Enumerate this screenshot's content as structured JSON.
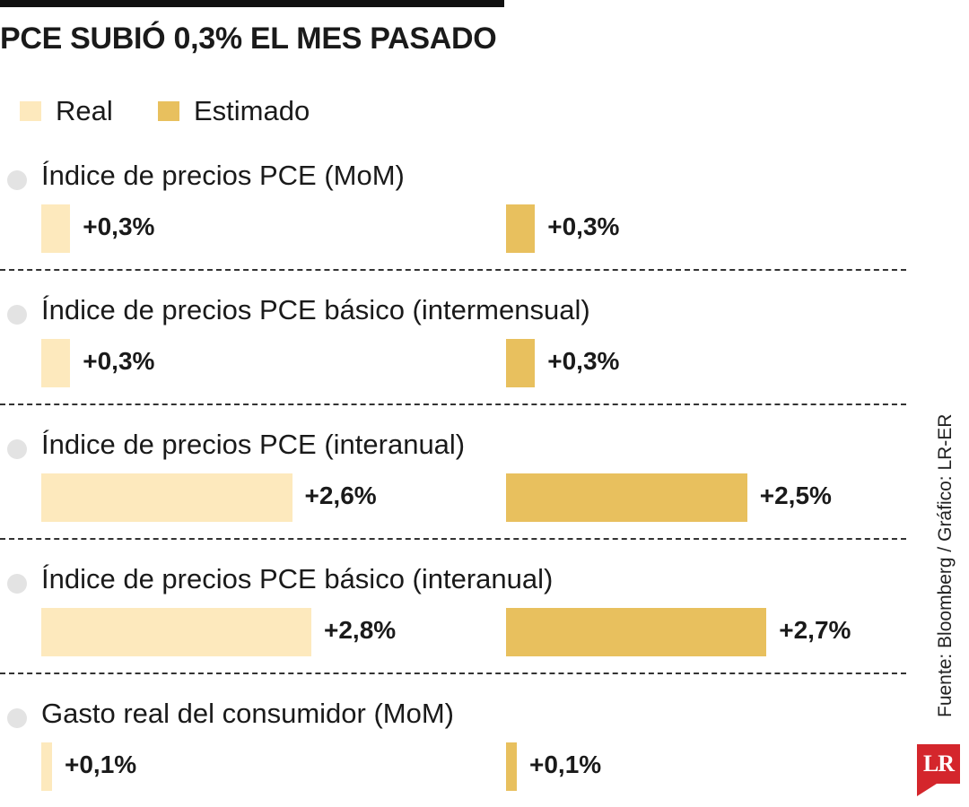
{
  "title": "PCE SUBIÓ 0,3% EL MES PASADO",
  "legend": [
    {
      "label": "Real",
      "color": "#fde9bd"
    },
    {
      "label": "Estimado",
      "color": "#e8c05e"
    }
  ],
  "source": "Fuente: Bloomberg / Gráfico: LR-ER",
  "logo_text": "LR",
  "chart_data": {
    "type": "bar",
    "categories": [
      "Índice de precios PCE (MoM)",
      "Índice de precios PCE básico (intermensual)",
      "Índice de precios PCE (interanual)",
      "Índice de precios PCE básico (interanual)",
      "Gasto real del consumidor (MoM)"
    ],
    "series": [
      {
        "name": "Real",
        "color": "#fde9bd",
        "values": [
          0.3,
          0.3,
          2.6,
          2.8,
          0.1
        ],
        "labels": [
          "+0,3%",
          "+0,3%",
          "+2,6%",
          "+2,8%",
          "+0,1%"
        ]
      },
      {
        "name": "Estimado",
        "color": "#e8c05e",
        "values": [
          0.3,
          0.3,
          2.5,
          2.7,
          0.1
        ],
        "labels": [
          "+0,3%",
          "+0,3%",
          "+2,5%",
          "+2,7%",
          "+0,1%"
        ]
      }
    ],
    "orientation": "horizontal",
    "grid": false,
    "legend_position": "top-left"
  }
}
